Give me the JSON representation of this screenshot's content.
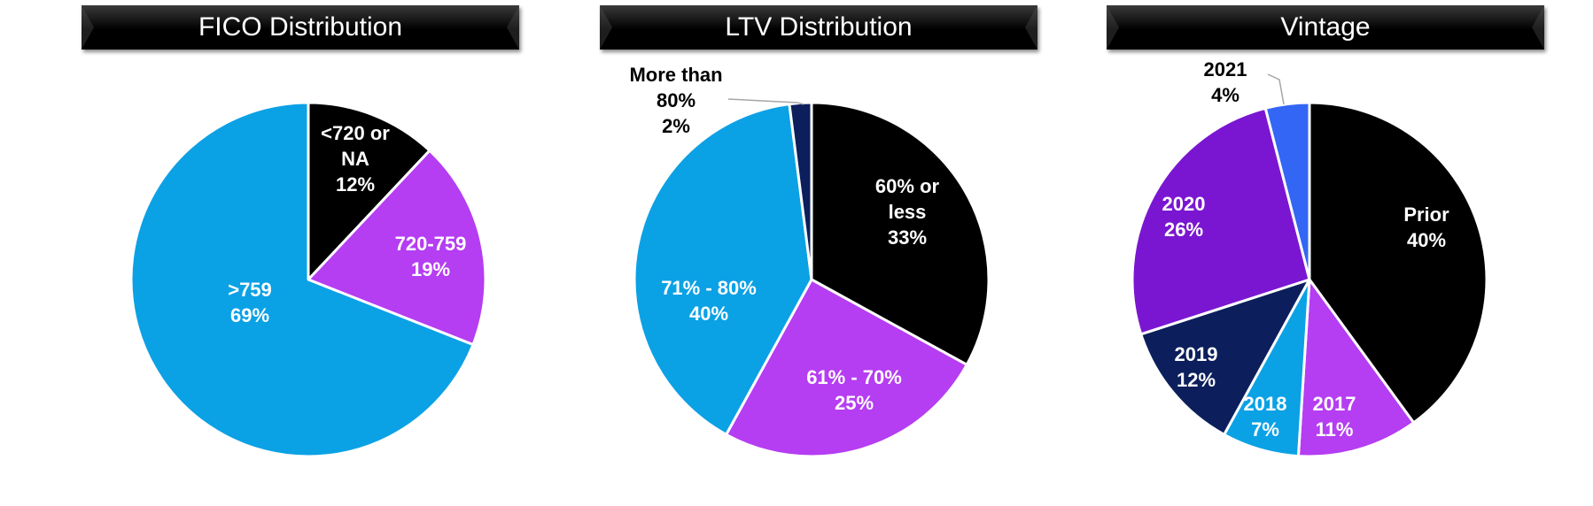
{
  "chart_data": [
    {
      "type": "pie",
      "title": "FICO Distribution",
      "slices": [
        {
          "label": "<720 or NA",
          "value": 12,
          "display": "12%",
          "color": "#000000",
          "label_color": "#ffffff"
        },
        {
          "label": "720-759",
          "value": 19,
          "display": "19%",
          "color": "#b53df2",
          "label_color": "#ffffff"
        },
        {
          "label": ">759",
          "value": 69,
          "display": "69%",
          "color": "#0ba1e5",
          "label_color": "#ffffff"
        }
      ]
    },
    {
      "type": "pie",
      "title": "LTV Distribution",
      "slices": [
        {
          "label": "60% or less",
          "value": 33,
          "display": "33%",
          "color": "#000000",
          "label_color": "#ffffff"
        },
        {
          "label": "61% - 70%",
          "value": 25,
          "display": "25%",
          "color": "#b53df2",
          "label_color": "#ffffff"
        },
        {
          "label": "71% - 80%",
          "value": 40,
          "display": "40%",
          "color": "#0ba1e5",
          "label_color": "#ffffff"
        },
        {
          "label": "More than 80%",
          "value": 2,
          "display": "2%",
          "color": "#0c1f5c",
          "label_color": "#000000",
          "outside": true
        }
      ]
    },
    {
      "type": "pie",
      "title": "Vintage",
      "slices": [
        {
          "label": "Prior",
          "value": 40,
          "display": "40%",
          "color": "#000000",
          "label_color": "#ffffff"
        },
        {
          "label": "2017",
          "value": 11,
          "display": "11%",
          "color": "#b53df2",
          "label_color": "#ffffff"
        },
        {
          "label": "2018",
          "value": 7,
          "display": "7%",
          "color": "#0ba1e5",
          "label_color": "#ffffff"
        },
        {
          "label": "2019",
          "value": 12,
          "display": "12%",
          "color": "#0c1f5c",
          "label_color": "#ffffff"
        },
        {
          "label": "2020",
          "value": 26,
          "display": "26%",
          "color": "#7a16d1",
          "label_color": "#ffffff"
        },
        {
          "label": "2021",
          "value": 4,
          "display": "4%",
          "color": "#3366f5",
          "label_color": "#000000",
          "outside": true
        }
      ]
    }
  ]
}
